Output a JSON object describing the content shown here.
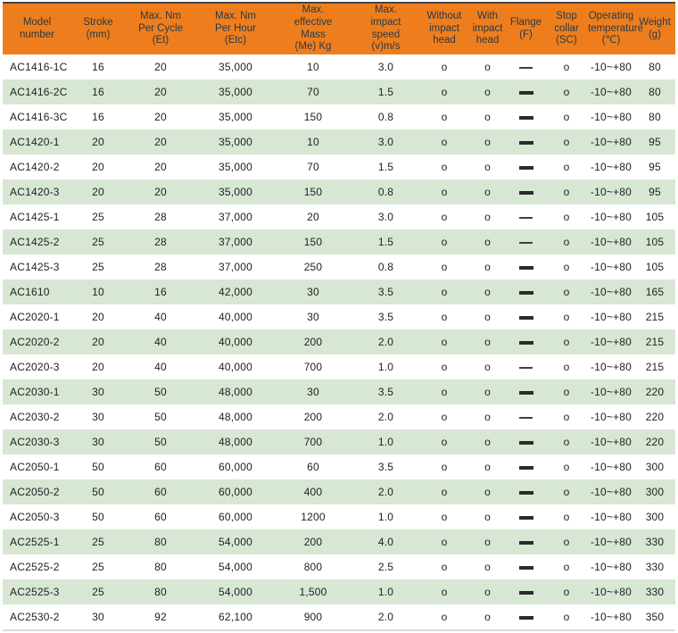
{
  "colors": {
    "header_bg": "#ee7e1d",
    "header_text": "#2b3844",
    "row_bg": "#ffffff",
    "row_alt_bg": "#d7e7d4",
    "body_text": "#222222",
    "dash_color": "#2b2b2b"
  },
  "table": {
    "columns": [
      {
        "id": "model",
        "label": "Model\nnumber"
      },
      {
        "id": "stroke",
        "label": "Stroke\n(mm)"
      },
      {
        "id": "et",
        "label": "Max. Nm\nPer Cycle\n(Et)"
      },
      {
        "id": "etc",
        "label": "Max. Nm\nPer Hour\n(Etc)"
      },
      {
        "id": "mass",
        "label": "Max.\neffective\nMass\n(Me) Kg"
      },
      {
        "id": "speed",
        "label": "Max.\nimpact\nspeed\n(v)m/s"
      },
      {
        "id": "without_head",
        "label": "Without\nimpact\nhead"
      },
      {
        "id": "with_head",
        "label": "With\nimpact\nhead"
      },
      {
        "id": "flange",
        "label": "Flange\n(F)"
      },
      {
        "id": "stop_collar",
        "label": "Stop\ncollar\n(SC)"
      },
      {
        "id": "temp",
        "label": "Operating\ntemperature\n(℃)"
      },
      {
        "id": "weight",
        "label": "Weight\n(g)"
      }
    ],
    "rows": [
      {
        "model": "AC1416-1C",
        "stroke": "16",
        "et": "20",
        "etc": "35,000",
        "mass": "10",
        "speed": "3.0",
        "without_head": "o",
        "with_head": "o",
        "flange": "—",
        "stop_collar": "o",
        "temp": "-10~+80",
        "weight": "80"
      },
      {
        "model": "AC1416-2C",
        "stroke": "16",
        "et": "20",
        "etc": "35,000",
        "mass": "70",
        "speed": "1.5",
        "without_head": "o",
        "with_head": "o",
        "flange": "▬",
        "stop_collar": "o",
        "temp": "-10~+80",
        "weight": "80"
      },
      {
        "model": "AC1416-3C",
        "stroke": "16",
        "et": "20",
        "etc": "35,000",
        "mass": "150",
        "speed": "0.8",
        "without_head": "o",
        "with_head": "o",
        "flange": "▬",
        "stop_collar": "o",
        "temp": "-10~+80",
        "weight": "80"
      },
      {
        "model": "AC1420-1",
        "stroke": "20",
        "et": "20",
        "etc": "35,000",
        "mass": "10",
        "speed": "3.0",
        "without_head": "o",
        "with_head": "o",
        "flange": "▬",
        "stop_collar": "o",
        "temp": "-10~+80",
        "weight": "95"
      },
      {
        "model": "AC1420-2",
        "stroke": "20",
        "et": "20",
        "etc": "35,000",
        "mass": "70",
        "speed": "1.5",
        "without_head": "o",
        "with_head": "o",
        "flange": "▬",
        "stop_collar": "o",
        "temp": "-10~+80",
        "weight": "95"
      },
      {
        "model": "AC1420-3",
        "stroke": "20",
        "et": "20",
        "etc": "35,000",
        "mass": "150",
        "speed": "0.8",
        "without_head": "o",
        "with_head": "o",
        "flange": "▬",
        "stop_collar": "o",
        "temp": "-10~+80",
        "weight": "95"
      },
      {
        "model": "AC1425-1",
        "stroke": "25",
        "et": "28",
        "etc": "37,000",
        "mass": "20",
        "speed": "3.0",
        "without_head": "o",
        "with_head": "o",
        "flange": "—",
        "stop_collar": "o",
        "temp": "-10~+80",
        "weight": "105"
      },
      {
        "model": "AC1425-2",
        "stroke": "25",
        "et": "28",
        "etc": "37,000",
        "mass": "150",
        "speed": "1.5",
        "without_head": "o",
        "with_head": "o",
        "flange": "—",
        "stop_collar": "o",
        "temp": "-10~+80",
        "weight": "105"
      },
      {
        "model": "AC1425-3",
        "stroke": "25",
        "et": "28",
        "etc": "37,000",
        "mass": "250",
        "speed": "0.8",
        "without_head": "o",
        "with_head": "o",
        "flange": "▬",
        "stop_collar": "o",
        "temp": "-10~+80",
        "weight": "105"
      },
      {
        "model": "AC1610",
        "stroke": "10",
        "et": "16",
        "etc": "42,000",
        "mass": "30",
        "speed": "3.5",
        "without_head": "o",
        "with_head": "o",
        "flange": "▬",
        "stop_collar": "o",
        "temp": "-10~+80",
        "weight": "165"
      },
      {
        "model": "AC2020-1",
        "stroke": "20",
        "et": "40",
        "etc": "40,000",
        "mass": "30",
        "speed": "3.5",
        "without_head": "o",
        "with_head": "o",
        "flange": "▬",
        "stop_collar": "o",
        "temp": "-10~+80",
        "weight": "215"
      },
      {
        "model": "AC2020-2",
        "stroke": "20",
        "et": "40",
        "etc": "40,000",
        "mass": "200",
        "speed": "2.0",
        "without_head": "o",
        "with_head": "o",
        "flange": "▬",
        "stop_collar": "o",
        "temp": "-10~+80",
        "weight": "215"
      },
      {
        "model": "AC2020-3",
        "stroke": "20",
        "et": "40",
        "etc": "40,000",
        "mass": "700",
        "speed": "1.0",
        "without_head": "o",
        "with_head": "o",
        "flange": "—",
        "stop_collar": "o",
        "temp": "-10~+80",
        "weight": "215"
      },
      {
        "model": "AC2030-1",
        "stroke": "30",
        "et": "50",
        "etc": "48,000",
        "mass": "30",
        "speed": "3.5",
        "without_head": "o",
        "with_head": "o",
        "flange": "▬",
        "stop_collar": "o",
        "temp": "-10~+80",
        "weight": "220"
      },
      {
        "model": "AC2030-2",
        "stroke": "30",
        "et": "50",
        "etc": "48,000",
        "mass": "200",
        "speed": "2.0",
        "without_head": "o",
        "with_head": "o",
        "flange": "—",
        "stop_collar": "o",
        "temp": "-10~+80",
        "weight": "220"
      },
      {
        "model": "AC2030-3",
        "stroke": "30",
        "et": "50",
        "etc": "48,000",
        "mass": "700",
        "speed": "1.0",
        "without_head": "o",
        "with_head": "o",
        "flange": "▬",
        "stop_collar": "o",
        "temp": "-10~+80",
        "weight": "220"
      },
      {
        "model": "AC2050-1",
        "stroke": "50",
        "et": "60",
        "etc": "60,000",
        "mass": "60",
        "speed": "3.5",
        "without_head": "o",
        "with_head": "o",
        "flange": "▬",
        "stop_collar": "o",
        "temp": "-10~+80",
        "weight": "300"
      },
      {
        "model": "AC2050-2",
        "stroke": "50",
        "et": "60",
        "etc": "60,000",
        "mass": "400",
        "speed": "2.0",
        "without_head": "o",
        "with_head": "o",
        "flange": "▬",
        "stop_collar": "o",
        "temp": "-10~+80",
        "weight": "300"
      },
      {
        "model": "AC2050-3",
        "stroke": "50",
        "et": "60",
        "etc": "60,000",
        "mass": "1200",
        "speed": "1.0",
        "without_head": "o",
        "with_head": "o",
        "flange": "▬",
        "stop_collar": "o",
        "temp": "-10~+80",
        "weight": "300"
      },
      {
        "model": "AC2525-1",
        "stroke": "25",
        "et": "80",
        "etc": "54,000",
        "mass": "200",
        "speed": "4.0",
        "without_head": "o",
        "with_head": "o",
        "flange": "▬",
        "stop_collar": "o",
        "temp": "-10~+80",
        "weight": "330"
      },
      {
        "model": "AC2525-2",
        "stroke": "25",
        "et": "80",
        "etc": "54,000",
        "mass": "800",
        "speed": "2.5",
        "without_head": "o",
        "with_head": "o",
        "flange": "▬",
        "stop_collar": "o",
        "temp": "-10~+80",
        "weight": "330"
      },
      {
        "model": "AC2525-3",
        "stroke": "25",
        "et": "80",
        "etc": "54,000",
        "mass": "1,500",
        "speed": "1.0",
        "without_head": "o",
        "with_head": "o",
        "flange": "▬",
        "stop_collar": "o",
        "temp": "-10~+80",
        "weight": "330"
      },
      {
        "model": "AC2530-2",
        "stroke": "30",
        "et": "92",
        "etc": "62,100",
        "mass": "900",
        "speed": "2.0",
        "without_head": "o",
        "with_head": "o",
        "flange": "▬",
        "stop_collar": "o",
        "temp": "-10~+80",
        "weight": "350"
      }
    ]
  }
}
